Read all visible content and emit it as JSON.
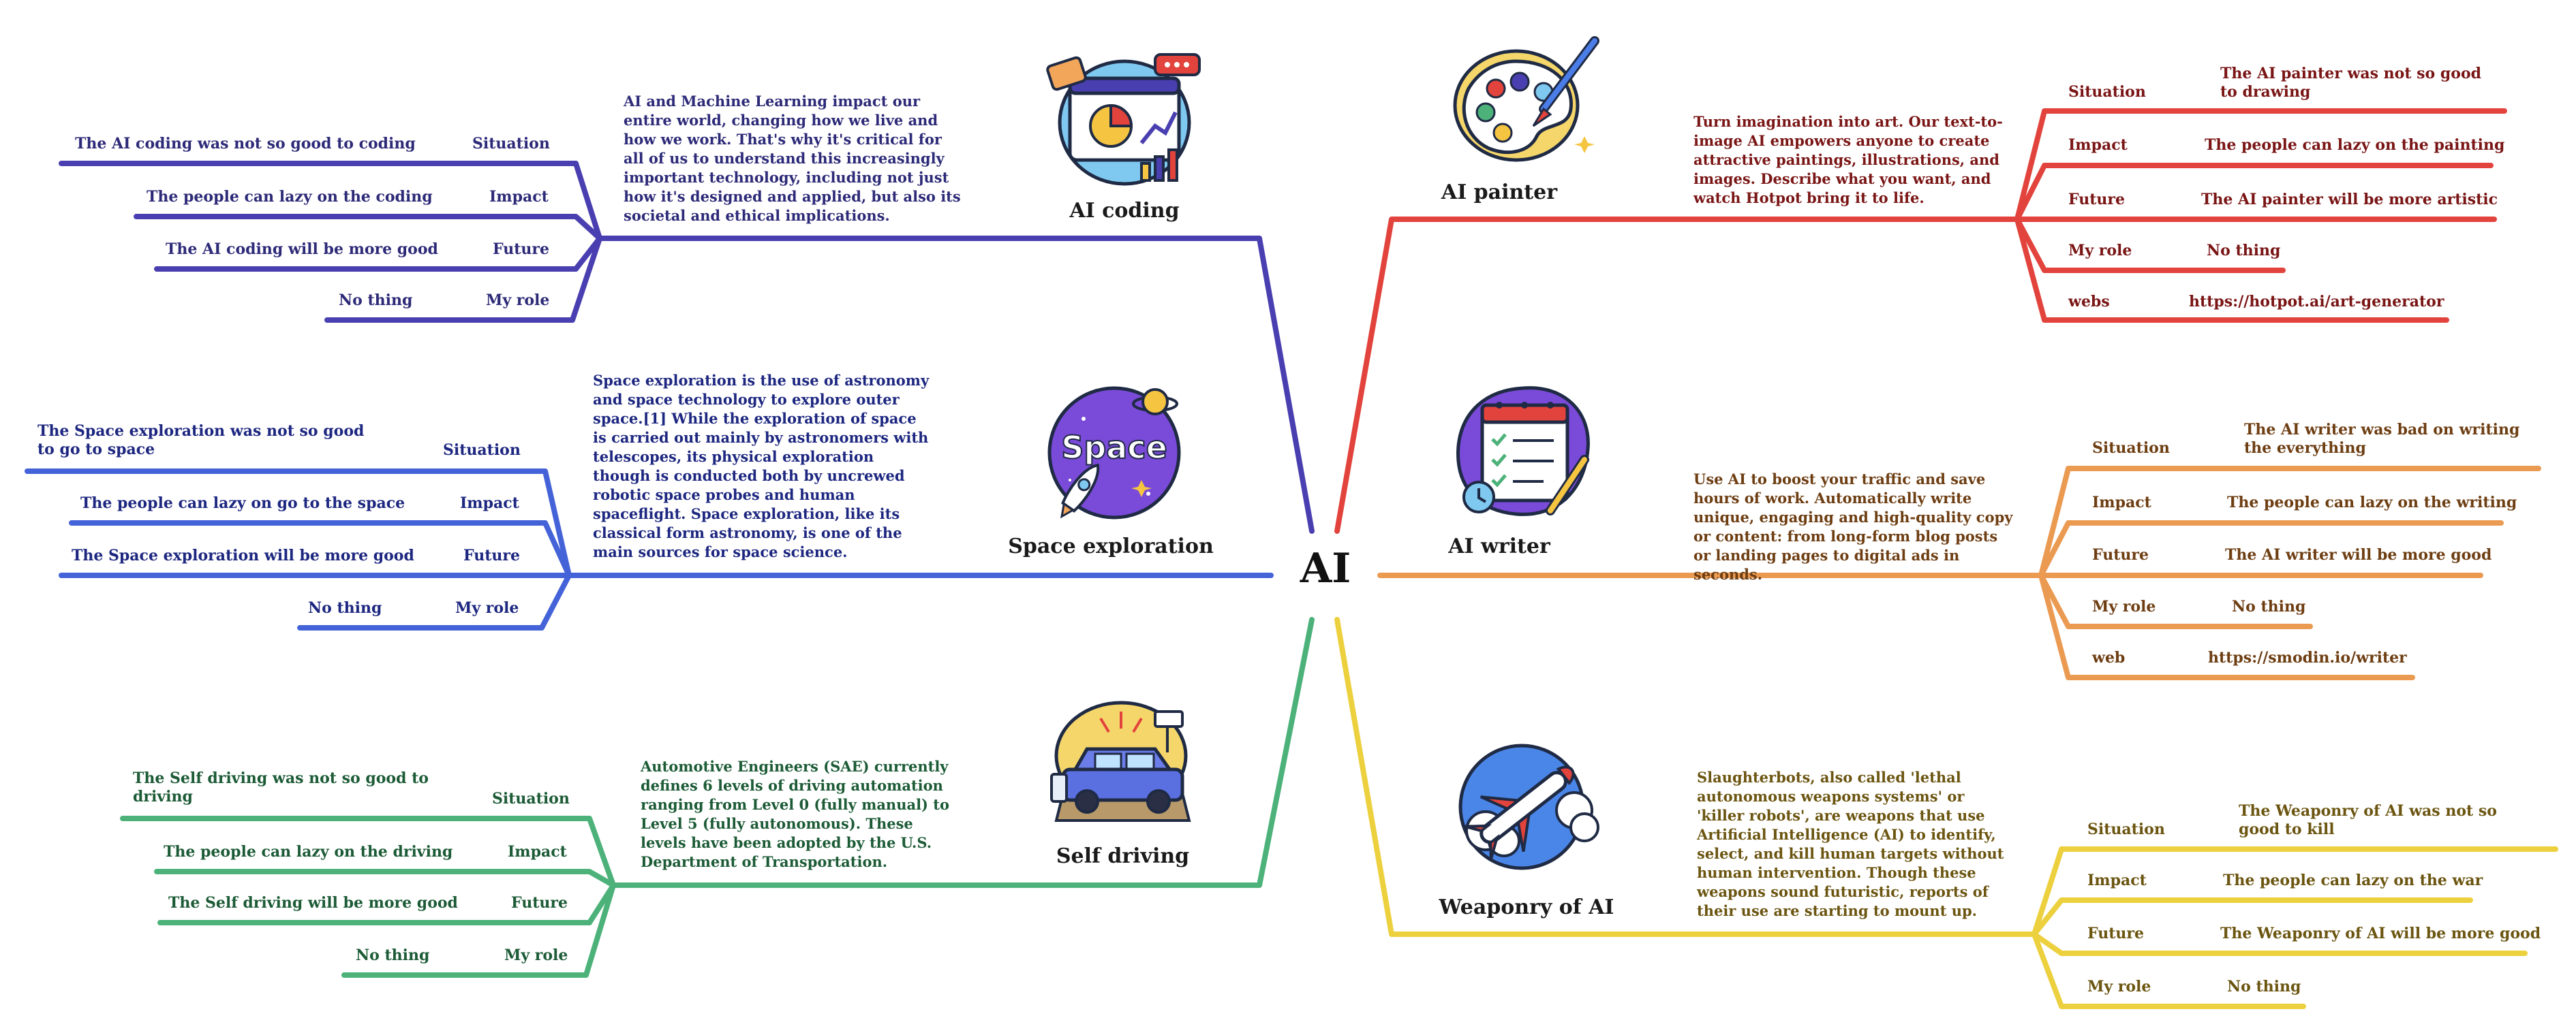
{
  "root": {
    "label": "AI"
  },
  "colors": {
    "coding": "#4a3fb0",
    "space": "#4463d8",
    "driving": "#4db27a",
    "painter": "#e2433c",
    "writer": "#eb9a52",
    "weaponry": "#ecd03e",
    "text_coding": "#2d2a78",
    "text_space": "#1d2780",
    "text_driving": "#1c5b36",
    "text_painter": "#7a1515",
    "text_writer": "#6e3e13",
    "text_weaponry": "#6b5510"
  },
  "branches": {
    "coding": {
      "title": "AI coding",
      "icon": "presentation-chart-icon",
      "description": "AI and Machine Learning impact our entire world, changing how we live and how we work. That's why it's critical for all of us to understand this increasingly important technology, including not just how it's designed and applied, but also its societal and ethical implications.",
      "items": [
        {
          "label": "Situation",
          "value": "The AI coding was not so good to coding"
        },
        {
          "label": "Impact",
          "value": "The people can lazy on the coding"
        },
        {
          "label": "Future",
          "value": "The AI coding will be more good"
        },
        {
          "label": "My role",
          "value": "No thing"
        }
      ]
    },
    "space": {
      "title": "Space exploration",
      "icon": "space-rocket-icon",
      "icon_text": "Space",
      "description": "Space exploration is the use of astronomy and space technology to explore outer space.[1] While the exploration of space is carried out mainly by astronomers with telescopes, its physical exploration though is conducted both by uncrewed robotic space probes and human spaceflight. Space exploration, like its classical form astronomy, is one of the main sources for space science.",
      "items": [
        {
          "label": "Situation",
          "value": "The Space exploration was not so good to go to space"
        },
        {
          "label": "Impact",
          "value": "The people can lazy on go to the space"
        },
        {
          "label": "Future",
          "value": "The Space exploration will be more good"
        },
        {
          "label": "My role",
          "value": "No thing"
        }
      ]
    },
    "driving": {
      "title": "Self driving",
      "icon": "self-driving-car-icon",
      "description": "Automotive Engineers (SAE) currently defines 6 levels of driving automation ranging from Level 0 (fully manual) to Level 5 (fully autonomous). These levels have been adopted by the U.S. Department of Transportation.",
      "items": [
        {
          "label": "Situation",
          "value": "The Self driving was not so good to driving"
        },
        {
          "label": "Impact",
          "value": "The people can lazy on the driving"
        },
        {
          "label": "Future",
          "value": "The Self driving will be more good"
        },
        {
          "label": "My role",
          "value": "No thing"
        }
      ]
    },
    "painter": {
      "title": "AI  painter",
      "icon": "paint-palette-icon",
      "description": "Turn imagination into art. Our text-to-image AI empowers anyone to create attractive paintings, illustrations, and images. Describe what you want, and watch Hotpot bring it to life.",
      "items": [
        {
          "label": "Situation",
          "value": "The AI  painter was not so good to drawing"
        },
        {
          "label": "Impact",
          "value": "The people can lazy on the painting"
        },
        {
          "label": "Future",
          "value": "The AI  painter will be more artistic"
        },
        {
          "label": "My role",
          "value": "No thing"
        },
        {
          "label": "webs",
          "value": "https://hotpot.ai/art-generator"
        }
      ]
    },
    "writer": {
      "title": "AI  writer",
      "icon": "writing-checklist-icon",
      "description": "Use AI to boost your traffic and save hours of work. Automatically write unique, engaging and high-quality copy or content: from long-form blog posts or landing pages to digital ads in seconds.",
      "items": [
        {
          "label": "Situation",
          "value": "The AI  writer was bad on writing the everything"
        },
        {
          "label": "Impact",
          "value": "The people can lazy on the writing"
        },
        {
          "label": "Future",
          "value": "The AI  writer will be more good"
        },
        {
          "label": "My role",
          "value": "No thing"
        },
        {
          "label": "web",
          "value": "https://smodin.io/writer"
        }
      ]
    },
    "weaponry": {
      "title": "Weaponry of AI",
      "icon": "missile-icon",
      "description": "Slaughterbots, also called 'lethal autonomous weapons systems' or 'killer robots', are weapons that use Artificial Intelligence (AI) to identify, select, and kill human targets without human intervention. Though these weapons sound futuristic, reports of their use are starting to mount up.",
      "items": [
        {
          "label": "Situation",
          "value": "The Weaponry of AI was not so good to kill"
        },
        {
          "label": "Impact",
          "value": "The people can lazy on the war"
        },
        {
          "label": "Future",
          "value": "The Weaponry of AI will be more good"
        },
        {
          "label": "My role",
          "value": "No thing"
        }
      ]
    }
  }
}
